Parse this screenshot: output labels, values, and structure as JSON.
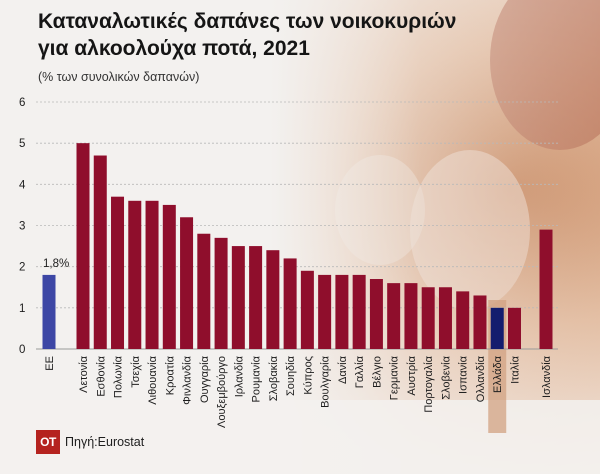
{
  "title_line1": "Καταναλωτικές δαπάνες των νοικοκυριών",
  "title_line2": "για αλκοολούχα ποτά, 2021",
  "units_label": "(% των συνολικών δαπανών)",
  "source": "Πηγή:Eurostat",
  "logo_text": "OT",
  "colors": {
    "bar": "#8f0e2c",
    "eu_bar": "#3d47a5",
    "greece_bar": "#131d6e",
    "greece_highlight": "#d2a282",
    "grid": "#b9b9b9",
    "logo": "#b5231f"
  },
  "chart_data": {
    "type": "bar",
    "title": "Καταναλωτικές δαπάνες των νοικοκυριών για αλκοολούχα ποτά, 2021",
    "ylabel": "(% των συνολικών δαπανών)",
    "xlabel": "",
    "ylim": [
      0,
      6
    ],
    "yticks": [
      0,
      1,
      2,
      3,
      4,
      5,
      6
    ],
    "grid": true,
    "categories": [
      "ΕΕ",
      "Λετονία",
      "Εσθονία",
      "Πολωνία",
      "Τσεχία",
      "Λιθουανία",
      "Κροατία",
      "Φινλανδία",
      "Ουγγαρία",
      "Λουξεμβούργο",
      "Ιρλανδία",
      "Ρουμανία",
      "Σλοβακία",
      "Σουηδία",
      "Κύπρος",
      "Βουλγαρία",
      "Δανία",
      "Γαλλία",
      "Βέλγιο",
      "Γερμανία",
      "Αυστρία",
      "Πορτογαλία",
      "Σλοβενία",
      "Ισπανία",
      "Ολλανδία",
      "Ελλάδα",
      "Ιταλία",
      "Ισλανδία"
    ],
    "values": [
      1.8,
      5.0,
      4.7,
      3.7,
      3.6,
      3.6,
      3.5,
      3.2,
      2.8,
      2.7,
      2.5,
      2.5,
      2.4,
      2.2,
      1.9,
      1.8,
      1.8,
      1.8,
      1.7,
      1.6,
      1.6,
      1.5,
      1.5,
      1.4,
      1.3,
      1.0,
      1.0,
      2.9
    ],
    "data_labels": [
      {
        "category": "ΕΕ",
        "text": "1,8%"
      }
    ],
    "highlight": [
      "ΕΕ",
      "Ελλάδα"
    ]
  }
}
